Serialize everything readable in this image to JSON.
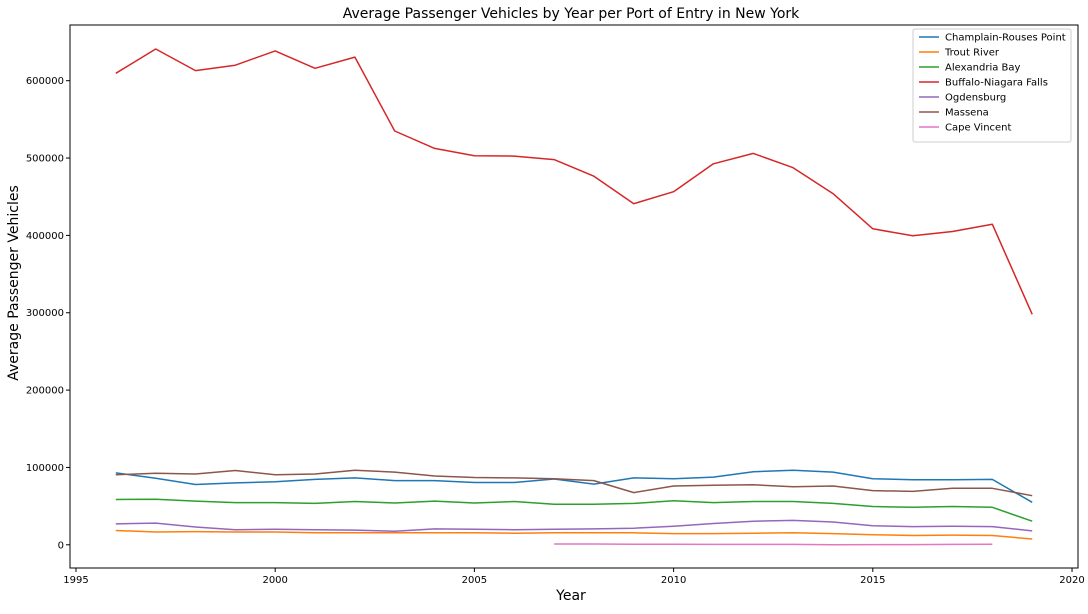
{
  "chart_data": {
    "type": "line",
    "title": "Average Passenger Vehicles by Year per Port of Entry in New York",
    "xlabel": "Year",
    "ylabel": "Average Passenger Vehicles",
    "xlim": [
      1994.85,
      2020.15
    ],
    "ylim": [
      -30000,
      672000
    ],
    "xticks": [
      1995,
      2000,
      2005,
      2010,
      2015,
      2020
    ],
    "yticks": [
      0,
      100000,
      200000,
      300000,
      400000,
      500000,
      600000
    ],
    "grid": false,
    "legend_position": "top-right",
    "x": [
      1996,
      1997,
      1998,
      1999,
      2000,
      2001,
      2002,
      2003,
      2004,
      2005,
      2006,
      2007,
      2008,
      2009,
      2010,
      2011,
      2012,
      2013,
      2014,
      2015,
      2016,
      2017,
      2018,
      2019
    ],
    "series": [
      {
        "name": "Champlain-Rouses Point",
        "color": "#1f77b4",
        "values": [
          93000,
          86000,
          78000,
          80000,
          81500,
          84500,
          86500,
          83000,
          83000,
          80500,
          80500,
          85000,
          78500,
          86500,
          85500,
          87500,
          94500,
          96500,
          94000,
          85500,
          84000,
          84000,
          84500,
          55000
        ]
      },
      {
        "name": "Trout River",
        "color": "#ff7f0e",
        "values": [
          18500,
          16500,
          17000,
          16500,
          16500,
          15500,
          15500,
          15500,
          15500,
          15500,
          15000,
          15500,
          15500,
          15500,
          14500,
          14500,
          15000,
          15500,
          14500,
          13000,
          12000,
          12500,
          12000,
          7500
        ]
      },
      {
        "name": "Alexandria Bay",
        "color": "#2ca02c",
        "values": [
          58500,
          59000,
          56500,
          54500,
          54500,
          53500,
          56000,
          54000,
          56500,
          54000,
          56000,
          52500,
          52500,
          53500,
          57000,
          54500,
          56000,
          56000,
          53500,
          49500,
          48500,
          49500,
          48500,
          30500
        ]
      },
      {
        "name": "Buffalo-Niagara Falls",
        "color": "#d62728",
        "values": [
          609500,
          641000,
          613000,
          620000,
          638500,
          616000,
          630500,
          535000,
          512500,
          503000,
          502500,
          498000,
          476500,
          441000,
          456500,
          492500,
          506000,
          487500,
          454000,
          408500,
          399500,
          405000,
          414500,
          298000
        ]
      },
      {
        "name": "Ogdensburg",
        "color": "#9467bd",
        "values": [
          27000,
          28000,
          23000,
          19500,
          20000,
          19500,
          19000,
          17500,
          20500,
          20000,
          19500,
          20000,
          20500,
          21500,
          24000,
          27500,
          30500,
          31500,
          29500,
          24500,
          23500,
          24000,
          23500,
          18000
        ]
      },
      {
        "name": "Massena",
        "color": "#8c564b",
        "values": [
          90500,
          92500,
          91500,
          96000,
          90500,
          91500,
          96500,
          94000,
          89000,
          87000,
          86500,
          85500,
          83000,
          67500,
          76000,
          77000,
          77500,
          75000,
          76000,
          70000,
          69000,
          73000,
          73000,
          63500
        ]
      },
      {
        "name": "Cape Vincent",
        "color": "#e377c2",
        "x": [
          2007,
          2008,
          2009,
          2010,
          2011,
          2012,
          2013,
          2014,
          2015,
          2016,
          2017,
          2018
        ],
        "values": [
          1000,
          1000,
          800,
          800,
          500,
          500,
          500,
          0,
          200,
          200,
          500,
          800
        ]
      }
    ]
  }
}
